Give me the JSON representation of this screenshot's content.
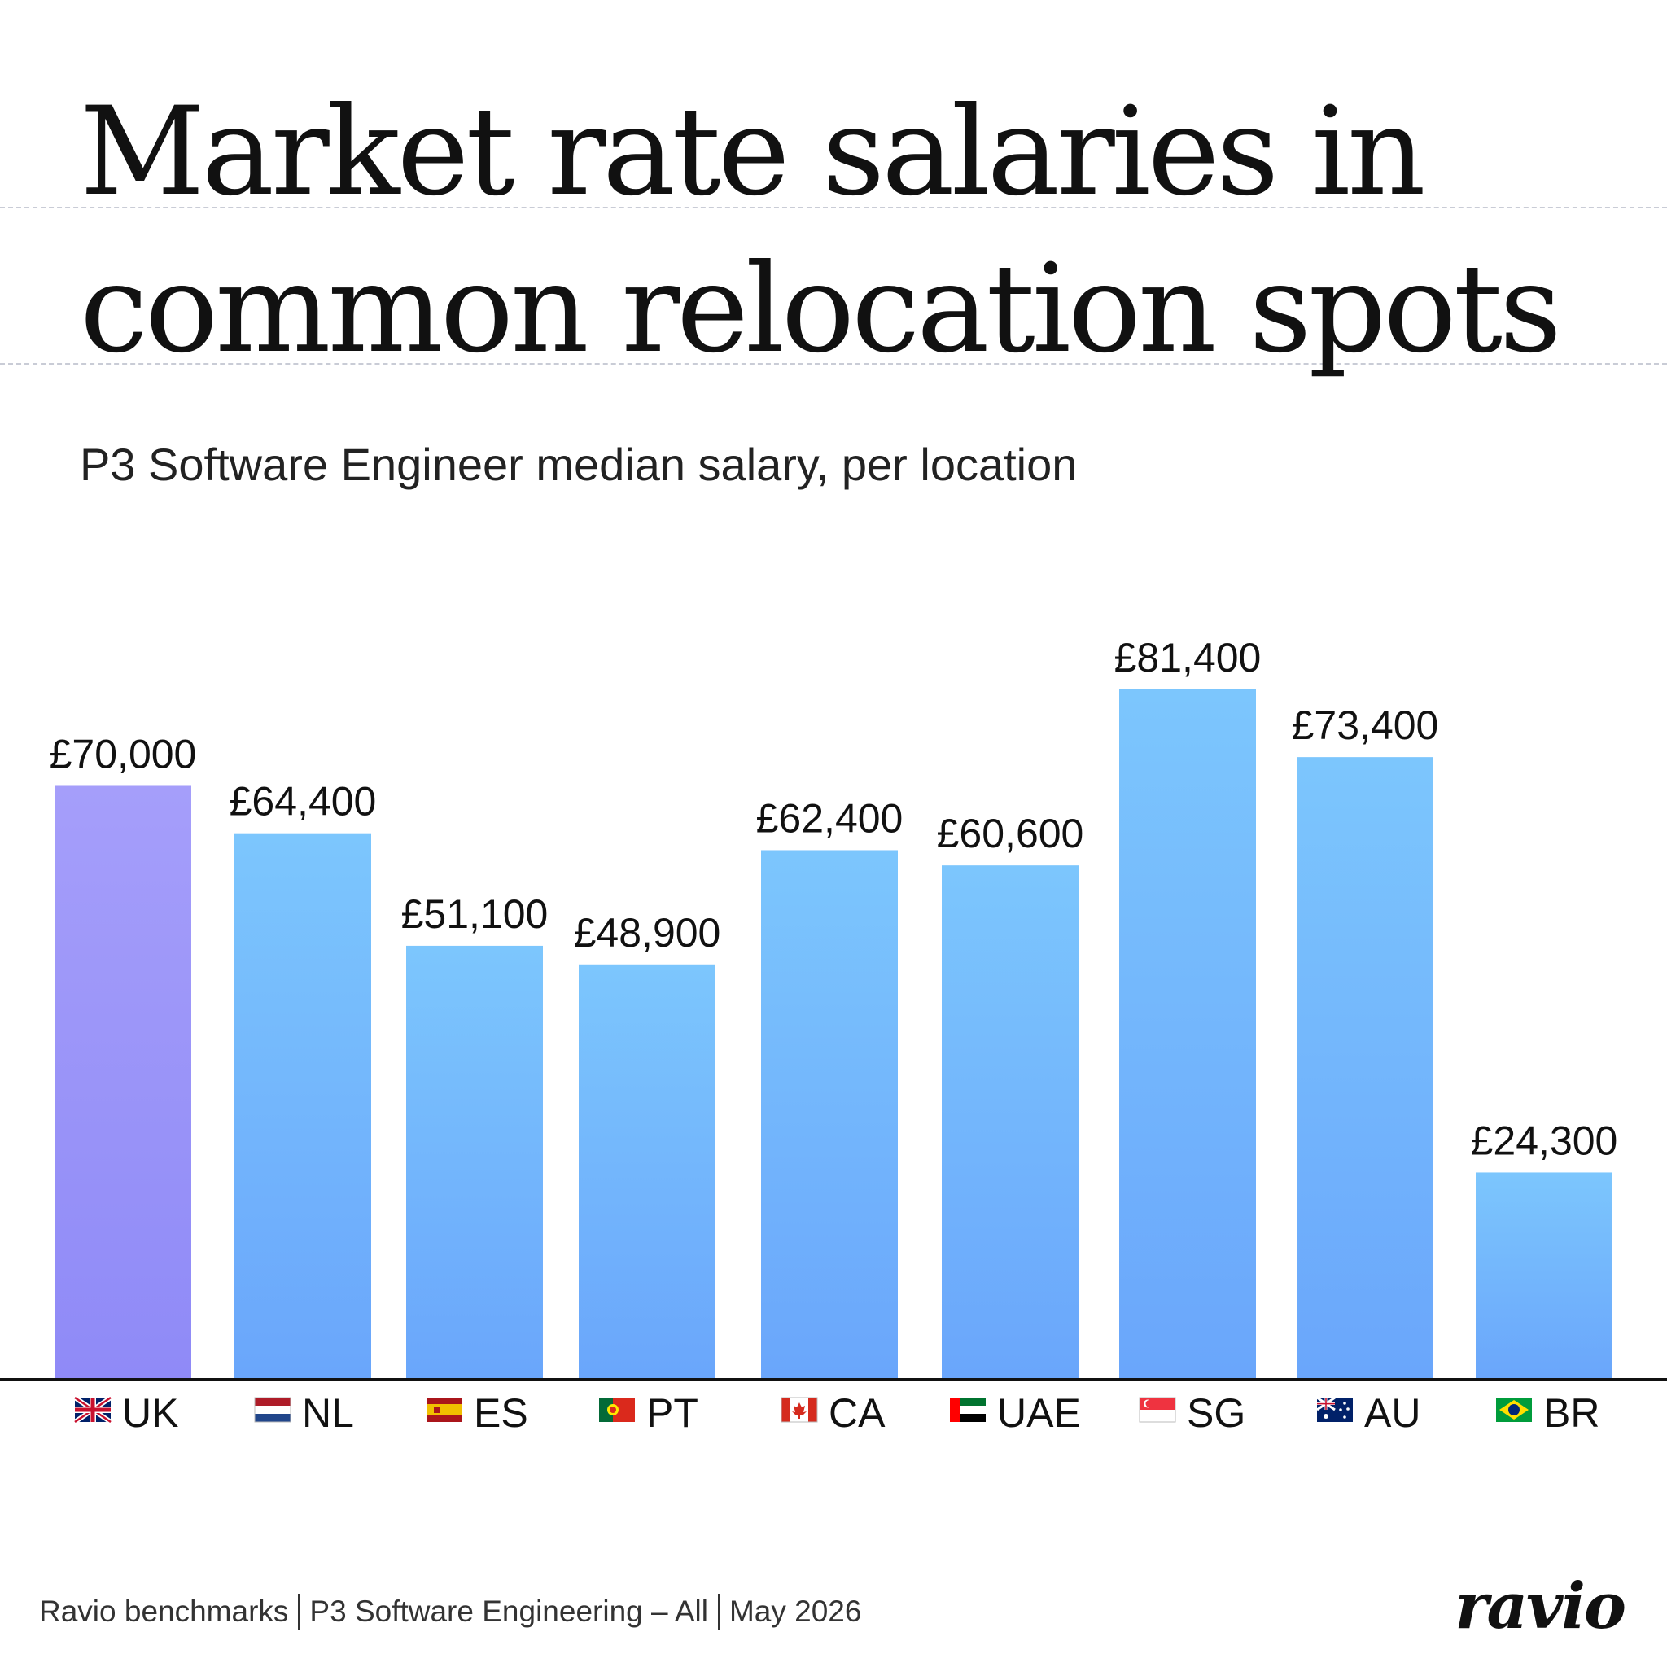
{
  "header": {
    "title_line1": "Market rate salaries in",
    "title_line2": "common relocation spots",
    "subtitle": "P3 Software Engineer median salary, per location"
  },
  "chart_data": {
    "type": "bar",
    "categories": [
      "UK",
      "NL",
      "ES",
      "PT",
      "CA",
      "UAE",
      "SG",
      "AU",
      "BR"
    ],
    "flags": [
      "uk-flag-icon",
      "netherlands-flag-icon",
      "spain-flag-icon",
      "portugal-flag-icon",
      "canada-flag-icon",
      "uae-flag-icon",
      "singapore-flag-icon",
      "australia-flag-icon",
      "brazil-flag-icon"
    ],
    "values": [
      70000,
      64400,
      51100,
      48900,
      62400,
      60600,
      81400,
      73400,
      24300
    ],
    "value_labels": [
      "£70,000",
      "£64,400",
      "£51,100",
      "£48,900",
      "£62,400",
      "£60,600",
      "£81,400",
      "£73,400",
      "£24,300"
    ],
    "highlighted_category": "UK",
    "colors": {
      "highlight_top": "#a59efa",
      "highlight_bottom": "#8f8af7",
      "bar_top": "#7cc6fd",
      "bar_bottom": "#6aa6fb",
      "baseline": "#111111"
    }
  },
  "footer": {
    "source": "Ravio benchmarks",
    "dataset": "P3 Software Engineering – All",
    "date": "May 2026"
  },
  "brand": {
    "logo_text": "ravio"
  }
}
